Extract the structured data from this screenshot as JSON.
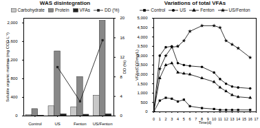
{
  "chart_data": [
    {
      "type": "bar",
      "title": "WAS disintegration",
      "categories": [
        "Control",
        "US",
        "Fenton",
        "US/Fenton"
      ],
      "ylabel": "Soluble organic matters (mg COD L⁻¹)",
      "y2label": "DD (%)",
      "ylim": [
        0,
        2100
      ],
      "yticks": [
        0,
        400,
        800,
        1200,
        1600,
        2000
      ],
      "y2lim": [
        0,
        20
      ],
      "y2ticks": [
        0,
        4,
        8,
        12,
        16,
        20
      ],
      "legend": "top",
      "series": [
        {
          "name": "Carbohydrate",
          "color": "#c8c8c8",
          "values": [
            20,
            210,
            190,
            440
          ]
        },
        {
          "name": "Protein",
          "color": "#888888",
          "values": [
            150,
            1390,
            840,
            2050
          ]
        },
        {
          "name": "VFAs",
          "color": "#222222",
          "values": [
            10,
            40,
            30,
            40
          ]
        },
        {
          "name": "DD (%)",
          "type": "line",
          "axis": "y2",
          "color": "#222222",
          "marker": "square",
          "values": [
            null,
            10,
            3,
            15.5
          ]
        }
      ]
    },
    {
      "type": "line",
      "title": "Variations of total VFAs",
      "xlabel": "Time(d)",
      "ylabel": "VFAs(CODmg/L)",
      "x": [
        0,
        1,
        2,
        3,
        4,
        5,
        6,
        8,
        10,
        11,
        12,
        13,
        14,
        16
      ],
      "xlim": [
        0,
        17
      ],
      "xticks": [
        0,
        1,
        2,
        3,
        4,
        5,
        6,
        7,
        8,
        9,
        10,
        11,
        12,
        13,
        14,
        15,
        16,
        17
      ],
      "ylim": [
        0,
        5000
      ],
      "yticks": [
        0,
        500,
        1000,
        1500,
        2000,
        2500,
        3000,
        3500,
        4000,
        4500,
        5000
      ],
      "legend": "top",
      "series": [
        {
          "name": "Control",
          "color": "#000000",
          "marker": "square",
          "values": [
            0,
            600,
            750,
            700,
            550,
            650,
            300,
            200,
            150,
            100,
            100,
            100,
            100,
            100
          ]
        },
        {
          "name": "US",
          "color": "#000000",
          "marker": "circle",
          "values": [
            0,
            3000,
            3450,
            3500,
            2600,
            2500,
            2450,
            2400,
            2100,
            1750,
            1500,
            1350,
            1300,
            1250
          ]
        },
        {
          "name": "Fenton",
          "color": "#000000",
          "marker": "triangle",
          "values": [
            0,
            1800,
            2500,
            2600,
            2100,
            2050,
            2000,
            1800,
            1600,
            1300,
            1100,
            900,
            800,
            750
          ]
        },
        {
          "name": "US/Fenton",
          "color": "#000000",
          "marker": "star",
          "values": [
            0,
            2300,
            3000,
            3450,
            3500,
            3800,
            4300,
            4600,
            4600,
            4500,
            3800,
            3600,
            3400,
            2900
          ]
        }
      ]
    }
  ]
}
